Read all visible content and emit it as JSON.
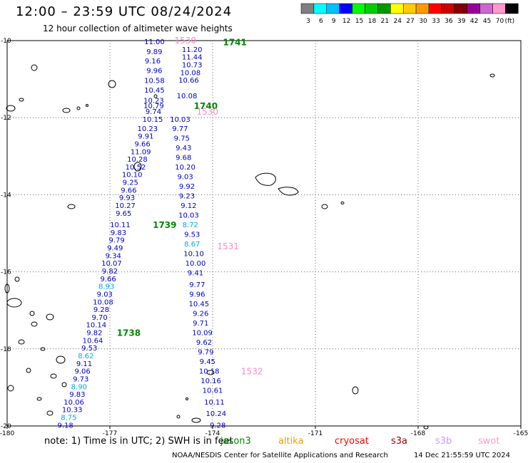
{
  "header": {
    "title": "12:00 – 23:59 UTC 08/24/2024",
    "subtitle": "12 hour collection of altimeter wave heights"
  },
  "legend": {
    "unit": "(ft)",
    "bins": [
      {
        "label": "3",
        "color": "#7f7f7f"
      },
      {
        "label": "6",
        "color": "#00ffff"
      },
      {
        "label": "9",
        "color": "#00bfff"
      },
      {
        "label": "12",
        "color": "#0000ff"
      },
      {
        "label": "15",
        "color": "#00ff00"
      },
      {
        "label": "18",
        "color": "#00cc00"
      },
      {
        "label": "21",
        "color": "#009900"
      },
      {
        "label": "24",
        "color": "#ffff00"
      },
      {
        "label": "27",
        "color": "#ffcc00"
      },
      {
        "label": "30",
        "color": "#ff9900"
      },
      {
        "label": "33",
        "color": "#ff0000"
      },
      {
        "label": "36",
        "color": "#cc0000"
      },
      {
        "label": "39",
        "color": "#800000"
      },
      {
        "label": "42",
        "color": "#990099"
      },
      {
        "label": "45",
        "color": "#cc66cc"
      },
      {
        "label": "70",
        "color": "#ff99cc"
      },
      {
        "label": "",
        "color": "#000000"
      }
    ]
  },
  "axes": {
    "lat_ticks": [
      "-10",
      "-12",
      "-14",
      "-16",
      "-18",
      "-20"
    ],
    "lon_ticks": [
      "-180",
      "-177",
      "-174",
      "-171",
      "-168",
      "-165"
    ]
  },
  "colors": {
    "dark": "#0000cc",
    "light": "#00aadd",
    "green": "#008800",
    "pink": "#ff88cc"
  },
  "tracks": {
    "left": [
      {
        "v": "11.00",
        "lon": -175.7,
        "lat": -10.02
      },
      {
        "v": "9.89",
        "lon": -175.7,
        "lat": -10.28
      },
      {
        "v": "9.16",
        "lon": -175.75,
        "lat": -10.52
      },
      {
        "v": "9.96",
        "lon": -175.7,
        "lat": -10.77
      },
      {
        "v": "10.58",
        "lon": -175.7,
        "lat": -11.03
      },
      {
        "v": "10.45",
        "lon": -175.7,
        "lat": -11.28
      },
      {
        "v": "10.23",
        "lon": -175.72,
        "lat": -11.54
      },
      {
        "v": "10.79",
        "lon": -175.72,
        "lat": -11.68
      },
      {
        "v": "9.74",
        "lon": -175.73,
        "lat": -11.83
      },
      {
        "v": "10.15",
        "lon": -175.75,
        "lat": -12.03
      },
      {
        "v": "10.23",
        "lon": -175.9,
        "lat": -12.27
      },
      {
        "v": "9.91",
        "lon": -175.95,
        "lat": -12.47
      },
      {
        "v": "9.66",
        "lon": -176.05,
        "lat": -12.67
      },
      {
        "v": "11.09",
        "lon": -176.1,
        "lat": -12.87
      },
      {
        "v": "10.28",
        "lon": -176.2,
        "lat": -13.07
      },
      {
        "v": "10.52",
        "lon": -176.25,
        "lat": -13.27
      },
      {
        "v": "10.10",
        "lon": -176.35,
        "lat": -13.47
      },
      {
        "v": "9.25",
        "lon": -176.4,
        "lat": -13.67
      },
      {
        "v": "9.66",
        "lon": -176.45,
        "lat": -13.87
      },
      {
        "v": "9.93",
        "lon": -176.5,
        "lat": -14.07
      },
      {
        "v": "10.27",
        "lon": -176.55,
        "lat": -14.27
      },
      {
        "v": "9.65",
        "lon": -176.6,
        "lat": -14.47
      },
      {
        "v": "10.11",
        "lon": -176.7,
        "lat": -14.77
      },
      {
        "v": "9.83",
        "lon": -176.75,
        "lat": -14.97
      },
      {
        "v": "9.79",
        "lon": -176.8,
        "lat": -15.17
      },
      {
        "v": "9.49",
        "lon": -176.85,
        "lat": -15.37
      },
      {
        "v": "9.34",
        "lon": -176.9,
        "lat": -15.57
      },
      {
        "v": "10.07",
        "lon": -176.95,
        "lat": -15.77
      },
      {
        "v": "9.82",
        "lon": -177.0,
        "lat": -15.97
      },
      {
        "v": "9.66",
        "lon": -177.05,
        "lat": -16.17
      },
      {
        "v": "8.93",
        "lon": -177.1,
        "lat": -16.37,
        "light": true
      },
      {
        "v": "9.03",
        "lon": -177.15,
        "lat": -16.57
      },
      {
        "v": "10.08",
        "lon": -177.2,
        "lat": -16.77
      },
      {
        "v": "9.28",
        "lon": -177.25,
        "lat": -16.97
      },
      {
        "v": "9.70",
        "lon": -177.3,
        "lat": -17.17
      },
      {
        "v": "10.14",
        "lon": -177.4,
        "lat": -17.37
      },
      {
        "v": "9.82",
        "lon": -177.45,
        "lat": -17.57
      },
      {
        "v": "10.64",
        "lon": -177.5,
        "lat": -17.77
      },
      {
        "v": "9.53",
        "lon": -177.6,
        "lat": -17.97
      },
      {
        "v": "8.62",
        "lon": -177.7,
        "lat": -18.17,
        "light": true
      },
      {
        "v": "9.11",
        "lon": -177.75,
        "lat": -18.37
      },
      {
        "v": "9.06",
        "lon": -177.8,
        "lat": -18.57
      },
      {
        "v": "9.73",
        "lon": -177.85,
        "lat": -18.77
      },
      {
        "v": "8.90",
        "lon": -177.9,
        "lat": -18.97,
        "light": true
      },
      {
        "v": "9.83",
        "lon": -177.95,
        "lat": -19.17
      },
      {
        "v": "10.06",
        "lon": -178.05,
        "lat": -19.37
      },
      {
        "v": "10.33",
        "lon": -178.1,
        "lat": -19.57
      },
      {
        "v": "8.75",
        "lon": -178.2,
        "lat": -19.77,
        "light": true
      },
      {
        "v": "9.18",
        "lon": -178.3,
        "lat": -19.97
      }
    ],
    "right": [
      {
        "v": "11.20",
        "lon": -174.6,
        "lat": -10.22
      },
      {
        "v": "11.44",
        "lon": -174.6,
        "lat": -10.42
      },
      {
        "v": "10.73",
        "lon": -174.6,
        "lat": -10.62
      },
      {
        "v": "10.08",
        "lon": -174.65,
        "lat": -10.82
      },
      {
        "v": "10.66",
        "lon": -174.7,
        "lat": -11.02
      },
      {
        "v": "10.08",
        "lon": -174.75,
        "lat": -11.42
      },
      {
        "v": "10.03",
        "lon": -174.95,
        "lat": -12.03
      },
      {
        "v": "9.77",
        "lon": -174.95,
        "lat": -12.27
      },
      {
        "v": "9.75",
        "lon": -174.9,
        "lat": -12.52
      },
      {
        "v": "9.43",
        "lon": -174.85,
        "lat": -12.77
      },
      {
        "v": "9.68",
        "lon": -174.85,
        "lat": -13.02
      },
      {
        "v": "10.20",
        "lon": -174.8,
        "lat": -13.27
      },
      {
        "v": "9.03",
        "lon": -174.8,
        "lat": -13.52
      },
      {
        "v": "9.92",
        "lon": -174.75,
        "lat": -13.77
      },
      {
        "v": "9.23",
        "lon": -174.75,
        "lat": -14.02
      },
      {
        "v": "9.12",
        "lon": -174.7,
        "lat": -14.27
      },
      {
        "v": "10.03",
        "lon": -174.7,
        "lat": -14.52
      },
      {
        "v": "8.72",
        "lon": -174.65,
        "lat": -14.77,
        "light": true
      },
      {
        "v": "9.53",
        "lon": -174.6,
        "lat": -15.02
      },
      {
        "v": "8.67",
        "lon": -174.6,
        "lat": -15.27,
        "light": true
      },
      {
        "v": "10.10",
        "lon": -174.55,
        "lat": -15.52
      },
      {
        "v": "10.00",
        "lon": -174.5,
        "lat": -15.77
      },
      {
        "v": "9.41",
        "lon": -174.5,
        "lat": -16.02
      },
      {
        "v": "9.77",
        "lon": -174.45,
        "lat": -16.32
      },
      {
        "v": "9.96",
        "lon": -174.45,
        "lat": -16.57
      },
      {
        "v": "10.45",
        "lon": -174.4,
        "lat": -16.82
      },
      {
        "v": "9.26",
        "lon": -174.35,
        "lat": -17.07
      },
      {
        "v": "9.71",
        "lon": -174.35,
        "lat": -17.32
      },
      {
        "v": "10.09",
        "lon": -174.3,
        "lat": -17.57
      },
      {
        "v": "9.62",
        "lon": -174.25,
        "lat": -17.82
      },
      {
        "v": "9.79",
        "lon": -174.2,
        "lat": -18.07
      },
      {
        "v": "9.45",
        "lon": -174.15,
        "lat": -18.32
      },
      {
        "v": "10.18",
        "lon": -174.1,
        "lat": -18.57
      },
      {
        "v": "10.16",
        "lon": -174.05,
        "lat": -18.82
      },
      {
        "v": "10.61",
        "lon": -174.0,
        "lat": -19.07
      },
      {
        "v": "10.11",
        "lon": -173.95,
        "lat": -19.37
      },
      {
        "v": "10.24",
        "lon": -173.9,
        "lat": -19.67
      },
      {
        "v": "9.28",
        "lon": -173.85,
        "lat": -19.97
      }
    ]
  },
  "time_labels": [
    {
      "text": "1741",
      "color": "green",
      "lon": -173.35,
      "lat": -10.03
    },
    {
      "text": "1530",
      "color": "pink",
      "lon": -174.8,
      "lat": -9.98
    },
    {
      "text": "1740",
      "color": "green",
      "lon": -174.2,
      "lat": -11.68
    },
    {
      "text": "1530",
      "color": "pink",
      "lon": -174.15,
      "lat": -11.83
    },
    {
      "text": "1739",
      "color": "green",
      "lon": -175.4,
      "lat": -14.77
    },
    {
      "text": "1531",
      "color": "pink",
      "lon": -173.55,
      "lat": -15.32
    },
    {
      "text": "1738",
      "color": "green",
      "lon": -176.45,
      "lat": -17.57
    },
    {
      "text": "1532",
      "color": "pink",
      "lon": -172.85,
      "lat": -18.57
    }
  ],
  "footer": {
    "note": "note:  1) Time is in UTC;  2) SWH is in feet",
    "sats": [
      {
        "text": "jason3",
        "color": "#008800"
      },
      {
        "text": "altika",
        "color": "#ff9900"
      },
      {
        "text": "cryosat",
        "color": "#ff0000"
      },
      {
        "text": "s3a",
        "color": "#990000"
      },
      {
        "text": "s3b",
        "color": "#cc99ff"
      },
      {
        "text": "swot",
        "color": "#ff99cc"
      }
    ],
    "credit": "NOAA/NESDIS Center for Satellite Applications and Research",
    "timestamp": "14 Dec 21:55:59 UTC 2024"
  }
}
